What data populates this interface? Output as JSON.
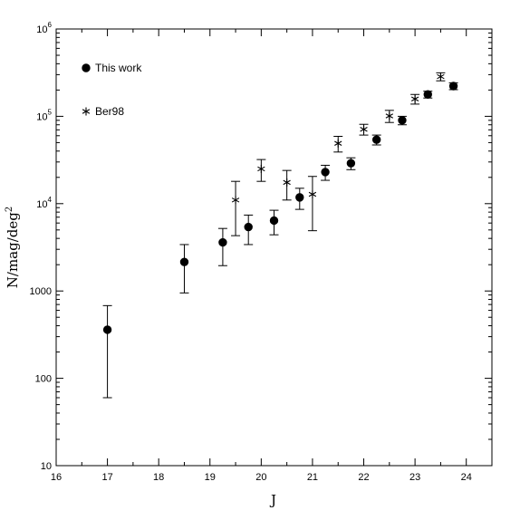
{
  "chart_data": {
    "type": "scatter",
    "xlabel": "J",
    "ylabel": "N/mag/deg",
    "ylabel_exponent": "2",
    "xlim": [
      16,
      24.5
    ],
    "ylim": [
      10,
      1000000
    ],
    "yscale": "log",
    "x_ticks": [
      "16",
      "17",
      "18",
      "19",
      "20",
      "21",
      "22",
      "23",
      "24"
    ],
    "y_ticks": [
      {
        "value": 10,
        "label": "10"
      },
      {
        "value": 100,
        "label": "100"
      },
      {
        "value": 1000,
        "label": "1000"
      },
      {
        "value": 10000,
        "base": "10",
        "exp": "4"
      },
      {
        "value": 100000,
        "base": "10",
        "exp": "5"
      },
      {
        "value": 1000000,
        "base": "10",
        "exp": "6"
      }
    ],
    "legend_position": "top-left",
    "series": [
      {
        "name": "This work",
        "marker": "filled-circle",
        "color": "#000000",
        "points": [
          {
            "x": 17.0,
            "y": 360,
            "lo": 60,
            "hi": 680
          },
          {
            "x": 18.5,
            "y": 2150,
            "lo": 950,
            "hi": 3400
          },
          {
            "x": 19.25,
            "y": 3600,
            "lo": 1950,
            "hi": 5200
          },
          {
            "x": 19.75,
            "y": 5400,
            "lo": 3400,
            "hi": 7400
          },
          {
            "x": 20.25,
            "y": 6400,
            "lo": 4400,
            "hi": 8400
          },
          {
            "x": 20.75,
            "y": 11800,
            "lo": 8600,
            "hi": 15000
          },
          {
            "x": 21.25,
            "y": 23000,
            "lo": 18500,
            "hi": 27500
          },
          {
            "x": 21.75,
            "y": 29000,
            "lo": 24500,
            "hi": 33500
          },
          {
            "x": 22.25,
            "y": 54000,
            "lo": 47000,
            "hi": 61000
          },
          {
            "x": 22.75,
            "y": 90000,
            "lo": 80000,
            "hi": 100000
          },
          {
            "x": 23.25,
            "y": 178000,
            "lo": 162000,
            "hi": 194000
          },
          {
            "x": 23.75,
            "y": 222000,
            "lo": 202000,
            "hi": 242000
          }
        ]
      },
      {
        "name": "Ber98",
        "marker": "asterisk",
        "color": "#000000",
        "points": [
          {
            "x": 19.5,
            "y": 11000,
            "lo": 4300,
            "hi": 18000
          },
          {
            "x": 20.0,
            "y": 25000,
            "lo": 18000,
            "hi": 32000
          },
          {
            "x": 20.5,
            "y": 17500,
            "lo": 11000,
            "hi": 24000
          },
          {
            "x": 21.0,
            "y": 12800,
            "lo": 4900,
            "hi": 20500
          },
          {
            "x": 21.5,
            "y": 49000,
            "lo": 39000,
            "hi": 59000
          },
          {
            "x": 22.0,
            "y": 71000,
            "lo": 61000,
            "hi": 81000
          },
          {
            "x": 22.5,
            "y": 101000,
            "lo": 85000,
            "hi": 117000
          },
          {
            "x": 23.0,
            "y": 158000,
            "lo": 138000,
            "hi": 178000
          },
          {
            "x": 23.5,
            "y": 285000,
            "lo": 255000,
            "hi": 315000
          }
        ]
      }
    ]
  }
}
